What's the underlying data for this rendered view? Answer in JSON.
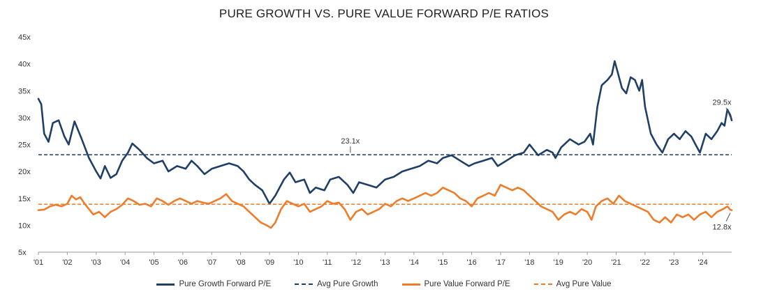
{
  "chart_data": {
    "type": "line",
    "title": "PURE GROWTH VS. PURE VALUE FORWARD P/E RATIOS",
    "xlabel": "",
    "ylabel": "",
    "ylim": [
      5,
      45
    ],
    "xlim": [
      2001.0,
      2025.0
    ],
    "y_ticks": [
      "5x",
      "10x",
      "15x",
      "20x",
      "25x",
      "30x",
      "35x",
      "40x",
      "45x"
    ],
    "x_ticks": [
      "'01",
      "'02",
      "'03",
      "'04",
      "'05",
      "'06",
      "'07",
      "'08",
      "'09",
      "'10",
      "'11",
      "'12",
      "'13",
      "'14",
      "'15",
      "'16",
      "'17",
      "'18",
      "'19",
      "'20",
      "'21",
      "'22",
      "'23",
      "'24"
    ],
    "series": [
      {
        "name": "Pure Growth Forward P/E",
        "color": "#1f3f66",
        "style": "solid",
        "points": [
          [
            2001.0,
            33.5
          ],
          [
            2001.1,
            32.5
          ],
          [
            2001.2,
            27.0
          ],
          [
            2001.35,
            25.5
          ],
          [
            2001.5,
            29.0
          ],
          [
            2001.7,
            29.5
          ],
          [
            2001.9,
            26.5
          ],
          [
            2002.05,
            25.0
          ],
          [
            2002.25,
            29.3
          ],
          [
            2002.5,
            26.0
          ],
          [
            2002.75,
            22.5
          ],
          [
            2003.0,
            20.0
          ],
          [
            2003.15,
            18.7
          ],
          [
            2003.3,
            21.0
          ],
          [
            2003.5,
            18.8
          ],
          [
            2003.7,
            19.5
          ],
          [
            2003.9,
            22.0
          ],
          [
            2004.1,
            23.5
          ],
          [
            2004.25,
            25.2
          ],
          [
            2004.5,
            24.0
          ],
          [
            2004.75,
            22.5
          ],
          [
            2005.0,
            21.5
          ],
          [
            2005.3,
            22.0
          ],
          [
            2005.5,
            20.0
          ],
          [
            2005.8,
            21.0
          ],
          [
            2006.1,
            20.5
          ],
          [
            2006.3,
            22.0
          ],
          [
            2006.5,
            21.0
          ],
          [
            2006.75,
            19.5
          ],
          [
            2007.0,
            20.5
          ],
          [
            2007.3,
            21.0
          ],
          [
            2007.6,
            21.5
          ],
          [
            2007.9,
            21.0
          ],
          [
            2008.1,
            20.0
          ],
          [
            2008.3,
            18.5
          ],
          [
            2008.5,
            17.5
          ],
          [
            2008.75,
            16.5
          ],
          [
            2009.0,
            14.0
          ],
          [
            2009.2,
            15.5
          ],
          [
            2009.5,
            18.5
          ],
          [
            2009.7,
            19.8
          ],
          [
            2009.9,
            18.0
          ],
          [
            2010.2,
            18.5
          ],
          [
            2010.4,
            16.0
          ],
          [
            2010.6,
            17.0
          ],
          [
            2010.9,
            16.5
          ],
          [
            2011.1,
            18.5
          ],
          [
            2011.4,
            19.0
          ],
          [
            2011.7,
            17.5
          ],
          [
            2011.9,
            16.0
          ],
          [
            2012.1,
            18.0
          ],
          [
            2012.4,
            17.5
          ],
          [
            2012.7,
            17.0
          ],
          [
            2013.0,
            18.5
          ],
          [
            2013.3,
            19.0
          ],
          [
            2013.6,
            20.0
          ],
          [
            2013.9,
            20.5
          ],
          [
            2014.2,
            21.0
          ],
          [
            2014.5,
            22.0
          ],
          [
            2014.8,
            21.5
          ],
          [
            2015.0,
            22.5
          ],
          [
            2015.3,
            23.0
          ],
          [
            2015.6,
            22.0
          ],
          [
            2015.9,
            21.0
          ],
          [
            2016.1,
            21.5
          ],
          [
            2016.4,
            22.0
          ],
          [
            2016.7,
            22.5
          ],
          [
            2016.9,
            21.0
          ],
          [
            2017.2,
            22.0
          ],
          [
            2017.5,
            23.0
          ],
          [
            2017.8,
            23.5
          ],
          [
            2018.0,
            25.0
          ],
          [
            2018.3,
            23.0
          ],
          [
            2018.6,
            24.0
          ],
          [
            2018.8,
            23.5
          ],
          [
            2018.9,
            22.5
          ],
          [
            2019.1,
            24.5
          ],
          [
            2019.4,
            26.0
          ],
          [
            2019.7,
            25.0
          ],
          [
            2019.9,
            25.5
          ],
          [
            2020.1,
            27.0
          ],
          [
            2020.2,
            25.0
          ],
          [
            2020.35,
            32.0
          ],
          [
            2020.5,
            36.0
          ],
          [
            2020.7,
            37.0
          ],
          [
            2020.85,
            38.0
          ],
          [
            2020.95,
            40.5
          ],
          [
            2021.05,
            38.5
          ],
          [
            2021.2,
            35.5
          ],
          [
            2021.35,
            34.5
          ],
          [
            2021.5,
            37.5
          ],
          [
            2021.65,
            37.0
          ],
          [
            2021.8,
            35.0
          ],
          [
            2021.9,
            37.0
          ],
          [
            2022.0,
            32.0
          ],
          [
            2022.2,
            27.0
          ],
          [
            2022.4,
            25.0
          ],
          [
            2022.6,
            23.5
          ],
          [
            2022.8,
            26.0
          ],
          [
            2023.0,
            27.0
          ],
          [
            2023.2,
            26.0
          ],
          [
            2023.4,
            27.5
          ],
          [
            2023.6,
            26.5
          ],
          [
            2023.8,
            24.5
          ],
          [
            2023.9,
            23.5
          ],
          [
            2024.1,
            27.0
          ],
          [
            2024.3,
            26.0
          ],
          [
            2024.5,
            27.5
          ],
          [
            2024.65,
            29.0
          ],
          [
            2024.75,
            28.5
          ],
          [
            2024.85,
            31.5
          ],
          [
            2024.95,
            30.5
          ],
          [
            2025.0,
            29.5
          ]
        ]
      },
      {
        "name": "Avg Pure Growth",
        "color": "#1f3f66",
        "style": "dashed",
        "constant": 23.1
      },
      {
        "name": "Pure Value Forward P/E",
        "color": "#ee7d2b",
        "style": "solid",
        "points": [
          [
            2001.0,
            12.8
          ],
          [
            2001.2,
            12.9
          ],
          [
            2001.4,
            13.5
          ],
          [
            2001.6,
            13.8
          ],
          [
            2001.8,
            13.5
          ],
          [
            2002.0,
            14.0
          ],
          [
            2002.15,
            15.5
          ],
          [
            2002.3,
            14.8
          ],
          [
            2002.45,
            15.2
          ],
          [
            2002.6,
            14.0
          ],
          [
            2002.75,
            13.0
          ],
          [
            2002.9,
            12.0
          ],
          [
            2003.1,
            12.5
          ],
          [
            2003.3,
            11.5
          ],
          [
            2003.5,
            12.5
          ],
          [
            2003.7,
            13.0
          ],
          [
            2003.9,
            13.8
          ],
          [
            2004.1,
            15.0
          ],
          [
            2004.3,
            14.5
          ],
          [
            2004.5,
            13.8
          ],
          [
            2004.7,
            14.0
          ],
          [
            2004.9,
            13.5
          ],
          [
            2005.1,
            15.0
          ],
          [
            2005.3,
            14.5
          ],
          [
            2005.5,
            13.8
          ],
          [
            2005.7,
            14.5
          ],
          [
            2005.9,
            15.0
          ],
          [
            2006.1,
            14.5
          ],
          [
            2006.3,
            14.0
          ],
          [
            2006.5,
            14.5
          ],
          [
            2006.7,
            14.2
          ],
          [
            2006.9,
            14.0
          ],
          [
            2007.1,
            14.5
          ],
          [
            2007.3,
            15.0
          ],
          [
            2007.5,
            15.8
          ],
          [
            2007.7,
            14.5
          ],
          [
            2007.9,
            14.0
          ],
          [
            2008.1,
            13.5
          ],
          [
            2008.3,
            12.5
          ],
          [
            2008.5,
            11.5
          ],
          [
            2008.7,
            10.5
          ],
          [
            2008.9,
            10.0
          ],
          [
            2009.05,
            9.5
          ],
          [
            2009.2,
            10.5
          ],
          [
            2009.4,
            13.0
          ],
          [
            2009.6,
            14.5
          ],
          [
            2009.8,
            14.0
          ],
          [
            2010.0,
            13.5
          ],
          [
            2010.2,
            14.0
          ],
          [
            2010.4,
            12.5
          ],
          [
            2010.6,
            13.0
          ],
          [
            2010.8,
            13.5
          ],
          [
            2011.0,
            14.5
          ],
          [
            2011.2,
            14.0
          ],
          [
            2011.4,
            14.2
          ],
          [
            2011.6,
            13.0
          ],
          [
            2011.8,
            11.0
          ],
          [
            2012.0,
            12.5
          ],
          [
            2012.2,
            13.0
          ],
          [
            2012.4,
            12.0
          ],
          [
            2012.6,
            12.5
          ],
          [
            2012.8,
            13.0
          ],
          [
            2013.0,
            14.0
          ],
          [
            2013.2,
            13.5
          ],
          [
            2013.4,
            14.5
          ],
          [
            2013.6,
            15.0
          ],
          [
            2013.8,
            14.5
          ],
          [
            2014.0,
            15.0
          ],
          [
            2014.2,
            15.5
          ],
          [
            2014.4,
            16.0
          ],
          [
            2014.6,
            15.5
          ],
          [
            2014.8,
            16.0
          ],
          [
            2015.0,
            17.0
          ],
          [
            2015.2,
            16.5
          ],
          [
            2015.4,
            16.0
          ],
          [
            2015.6,
            15.0
          ],
          [
            2015.8,
            14.5
          ],
          [
            2016.0,
            13.5
          ],
          [
            2016.2,
            15.0
          ],
          [
            2016.4,
            15.5
          ],
          [
            2016.6,
            16.0
          ],
          [
            2016.8,
            15.5
          ],
          [
            2017.0,
            17.5
          ],
          [
            2017.2,
            17.0
          ],
          [
            2017.4,
            16.5
          ],
          [
            2017.6,
            17.0
          ],
          [
            2017.8,
            16.5
          ],
          [
            2018.0,
            15.5
          ],
          [
            2018.2,
            14.5
          ],
          [
            2018.4,
            13.5
          ],
          [
            2018.6,
            13.0
          ],
          [
            2018.8,
            12.5
          ],
          [
            2019.0,
            11.0
          ],
          [
            2019.2,
            12.0
          ],
          [
            2019.4,
            12.5
          ],
          [
            2019.6,
            12.0
          ],
          [
            2019.8,
            13.0
          ],
          [
            2020.0,
            12.5
          ],
          [
            2020.15,
            11.0
          ],
          [
            2020.3,
            13.5
          ],
          [
            2020.5,
            14.5
          ],
          [
            2020.7,
            15.0
          ],
          [
            2020.9,
            14.0
          ],
          [
            2021.1,
            15.5
          ],
          [
            2021.3,
            14.5
          ],
          [
            2021.5,
            14.0
          ],
          [
            2021.7,
            13.5
          ],
          [
            2021.9,
            13.0
          ],
          [
            2022.1,
            12.5
          ],
          [
            2022.3,
            11.0
          ],
          [
            2022.5,
            10.5
          ],
          [
            2022.7,
            11.5
          ],
          [
            2022.9,
            10.5
          ],
          [
            2023.1,
            12.0
          ],
          [
            2023.3,
            11.5
          ],
          [
            2023.5,
            12.0
          ],
          [
            2023.7,
            11.0
          ],
          [
            2023.9,
            12.0
          ],
          [
            2024.1,
            12.5
          ],
          [
            2024.3,
            11.5
          ],
          [
            2024.5,
            12.5
          ],
          [
            2024.7,
            13.0
          ],
          [
            2024.85,
            13.5
          ],
          [
            2024.95,
            12.9
          ],
          [
            2025.0,
            12.8
          ]
        ]
      },
      {
        "name": "Avg Pure Value",
        "color": "#ee7d2b",
        "style": "dashed",
        "constant": 13.9
      }
    ],
    "annotations": [
      {
        "text": "23.1x",
        "x": 2011.8,
        "y": 23.1
      },
      {
        "text": "29.5x",
        "x": 2025.0,
        "y": 29.5
      },
      {
        "text": "12.8x",
        "x": 2025.0,
        "y": 12.8
      }
    ],
    "legend": [
      {
        "label": "Pure Growth Forward P/E",
        "color": "#1f3f66",
        "style": "solid"
      },
      {
        "label": "Avg Pure Growth",
        "color": "#1f3f66",
        "style": "dashed"
      },
      {
        "label": "Pure Value Forward P/E",
        "color": "#ee7d2b",
        "style": "solid"
      },
      {
        "label": "Avg Pure Value",
        "color": "#ee7d2b",
        "style": "dashed"
      }
    ],
    "legend_position": "bottom",
    "grid": false
  }
}
